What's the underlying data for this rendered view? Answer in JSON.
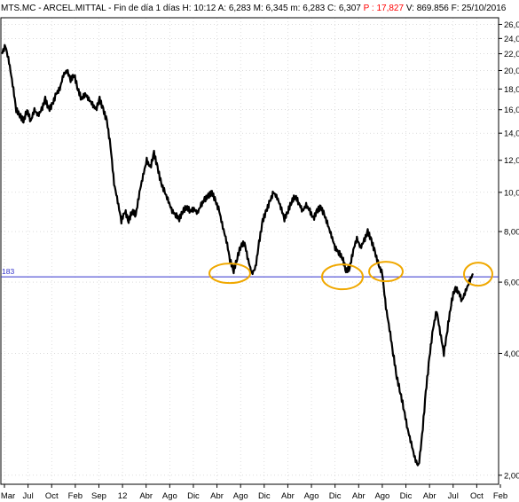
{
  "header": {
    "symbol": "MTS.MC",
    "sep1": " - ",
    "name": "ARCEL.MITTAL",
    "sep2": " - ",
    "period": "Fin de día 1 días",
    "h_label": " H: ",
    "h_value": "10:12",
    "a_label": " A: ",
    "a_value": "6,283",
    "m_label": " M: ",
    "m_value": "6,345",
    "mm_label": " m: ",
    "mm_value": "6,283",
    "c_label": " C: ",
    "c_value": "6,307",
    "p_label": " P : ",
    "p_value": "17,827",
    "v_label": " V: ",
    "v_value": "869.856",
    "f_label": " F: ",
    "f_value": "25/10/2016",
    "pct_color": "#ff0000"
  },
  "chart_data": {
    "type": "line",
    "y_scale": "log",
    "ylim": [
      1.9,
      27
    ],
    "yticks": [
      "26,00",
      "24,00",
      "22,00",
      "20,00",
      "18,00",
      "16,00",
      "14,00",
      "12,00",
      "10,00",
      "8,00",
      "6,00",
      "4,00",
      "2,00"
    ],
    "ytick_values": [
      26,
      24,
      22,
      20,
      18,
      16,
      14,
      12,
      10,
      8,
      6,
      4,
      2
    ],
    "xticks": [
      "Mar",
      "Jul",
      "Oct",
      "Feb",
      "Sep",
      "12",
      "Abr",
      "Ago",
      "Dic",
      "Abr",
      "Ago",
      "Dic",
      "Abr",
      "Ago",
      "Dic",
      "Abr",
      "Ago",
      "Dic",
      "Abr",
      "Jul",
      "Oct",
      "Feb"
    ],
    "reference_line": {
      "value": 6.183,
      "label": "183",
      "color": "#3333cc"
    },
    "highlight_color": "#f0a800",
    "line_color": "#000000",
    "grid": true,
    "series": [
      {
        "values": [
          22,
          23,
          21,
          18.5,
          16,
          15.5,
          15,
          16,
          15,
          16,
          15.5,
          16,
          17,
          16,
          16.5,
          17.5,
          18,
          19.5,
          20,
          19,
          19.5,
          18,
          17,
          17.5,
          17,
          16.5,
          16,
          17,
          16,
          15,
          13,
          10.5,
          9.5,
          8.5,
          9,
          8.5,
          9,
          8.8,
          10,
          11,
          12,
          11.5,
          12.5,
          11.5,
          10.5,
          10,
          9.5,
          9,
          8.8,
          8.6,
          9,
          9.2,
          9,
          9.1,
          8.9,
          9.3,
          9.6,
          9.8,
          10,
          9.5,
          9,
          8.2,
          7.6,
          6.8,
          6.4,
          6.9,
          7.4,
          7.5,
          6.8,
          6.3,
          6.5,
          7.5,
          8.5,
          9,
          9.5,
          10,
          9.7,
          9.2,
          8.6,
          9,
          9.5,
          9.8,
          9.4,
          9,
          9.3,
          9,
          8.6,
          9,
          9.2,
          8.8,
          8.3,
          7.8,
          7.3,
          7.1,
          6.9,
          6.4,
          6.5,
          7.2,
          7.7,
          7.3,
          7.6,
          8,
          7.6,
          7.1,
          6.6,
          6.3,
          5.2,
          4.6,
          4.0,
          3.5,
          3.2,
          2.9,
          2.6,
          2.4,
          2.2,
          2.1,
          2.5,
          3.2,
          3.9,
          4.6,
          5.1,
          4.5,
          4.0,
          4.6,
          5.3,
          5.8,
          5.7,
          5.4,
          5.7,
          6.0,
          6.3
        ]
      }
    ]
  }
}
